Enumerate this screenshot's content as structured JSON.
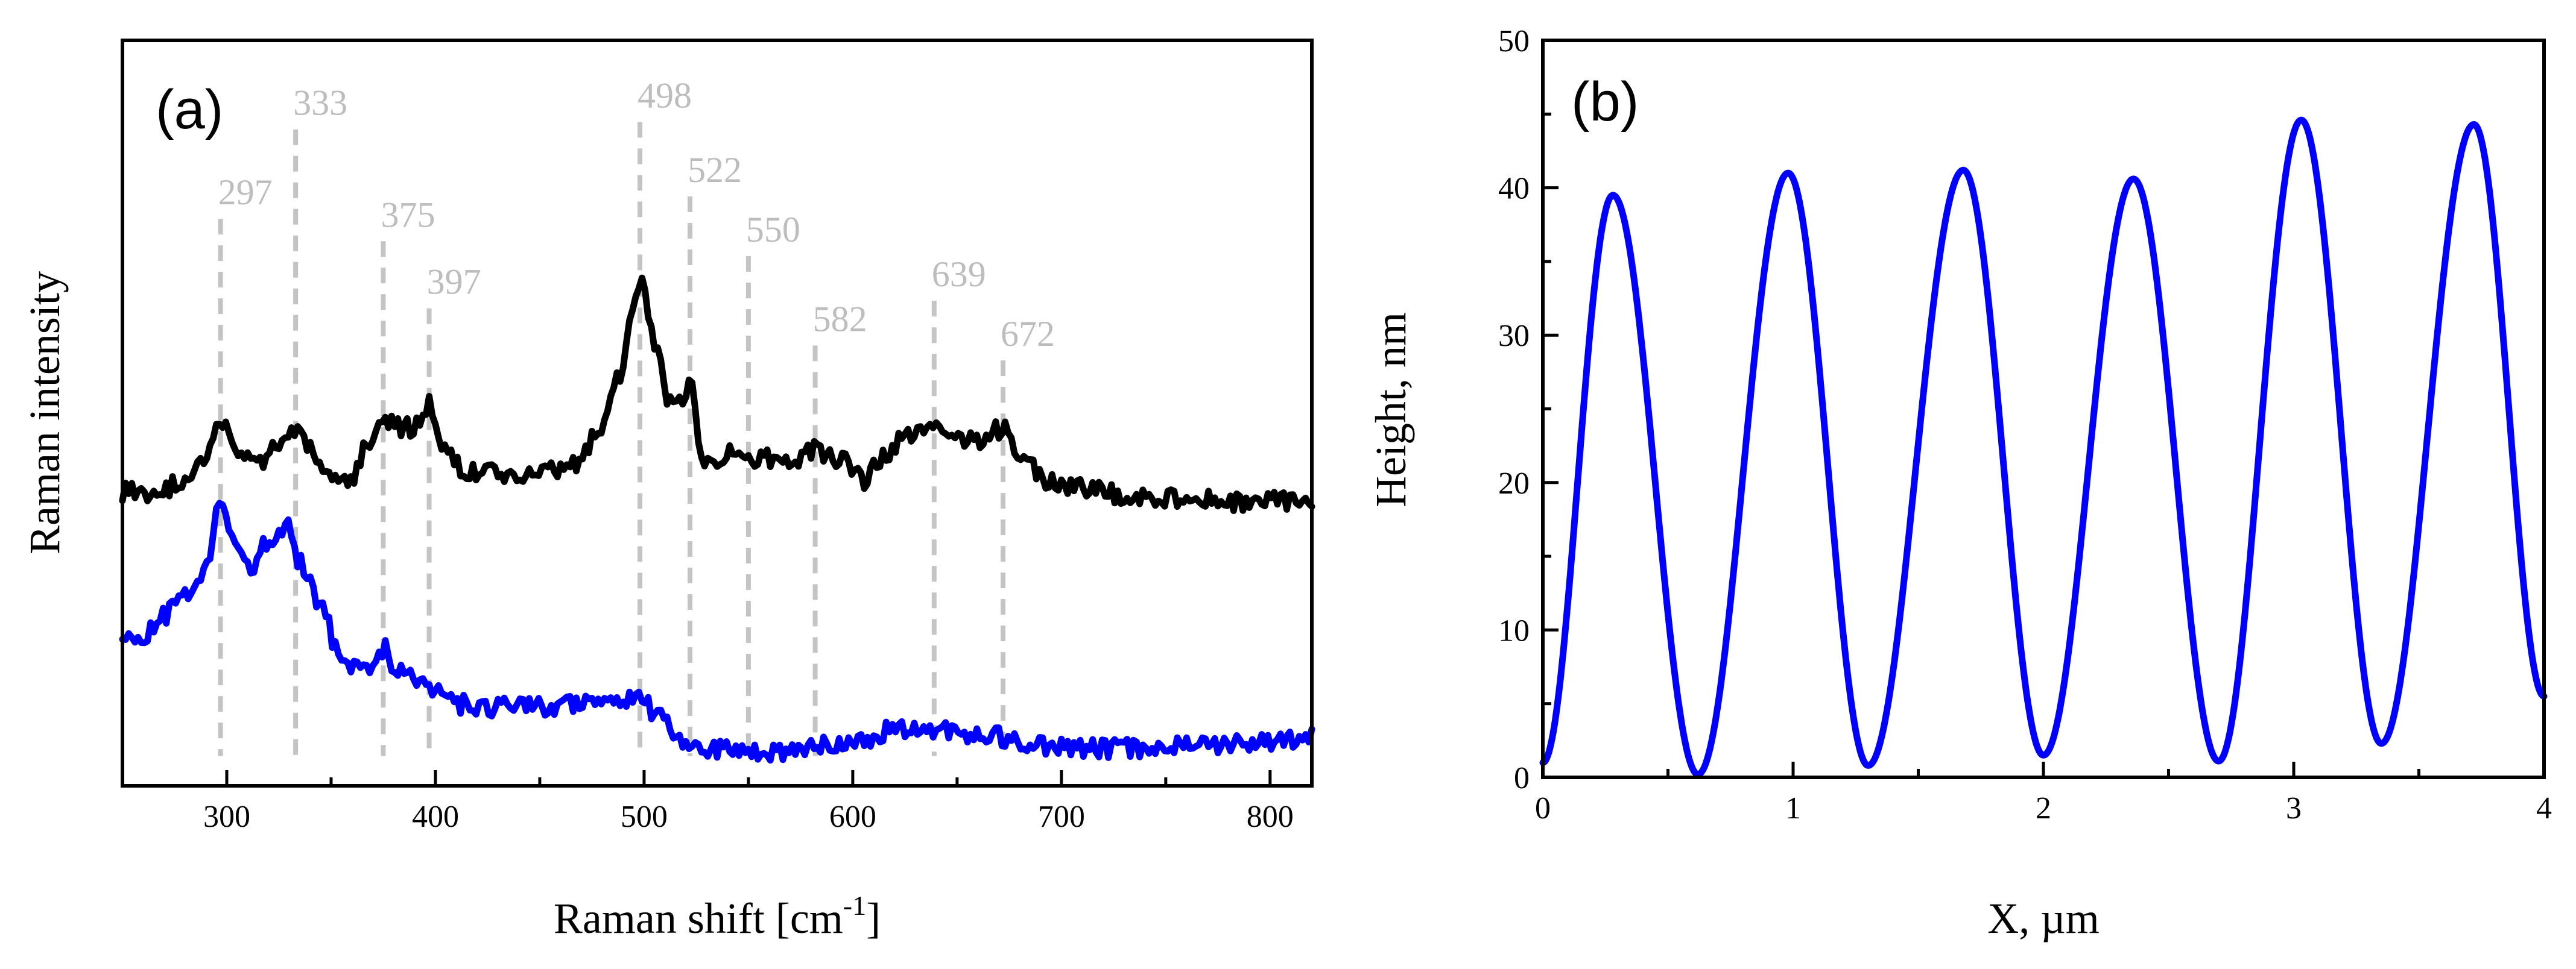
{
  "chart_data": [
    {
      "type": "line",
      "panel_label": "(a)",
      "title": "",
      "xlabel": "Raman shift [cm",
      "xlabel_superscript": "-1",
      "xlabel_suffix": "]",
      "ylabel": "Raman intensity",
      "xlim": [
        250,
        820
      ],
      "ylim": [
        0,
        100
      ],
      "y_ticks_labeled": false,
      "x_ticks": [
        300,
        400,
        500,
        600,
        700,
        800
      ],
      "x_tick_labels": [
        "300",
        "400",
        "500",
        "600",
        "700",
        "800"
      ],
      "grid": false,
      "peak_markers": [
        {
          "label": "297",
          "x": 297,
          "label_y": 78
        },
        {
          "label": "333",
          "x": 333,
          "label_y": 90
        },
        {
          "label": "375",
          "x": 375,
          "label_y": 75
        },
        {
          "label": "397",
          "x": 397,
          "label_y": 66
        },
        {
          "label": "498",
          "x": 498,
          "label_y": 91
        },
        {
          "label": "522",
          "x": 522,
          "label_y": 81
        },
        {
          "label": "550",
          "x": 550,
          "label_y": 73
        },
        {
          "label": "582",
          "x": 582,
          "label_y": 61
        },
        {
          "label": "639",
          "x": 639,
          "label_y": 67
        },
        {
          "label": "672",
          "x": 672,
          "label_y": 59
        }
      ],
      "series": [
        {
          "name": "black spectrum",
          "color": "#000000",
          "x": [
            250,
            260,
            270,
            280,
            290,
            297,
            305,
            315,
            325,
            333,
            342,
            352,
            360,
            368,
            375,
            382,
            390,
            397,
            405,
            415,
            430,
            450,
            465,
            478,
            488,
            498,
            506,
            512,
            517,
            522,
            528,
            535,
            545,
            555,
            570,
            582,
            595,
            605,
            615,
            625,
            639,
            650,
            660,
            672,
            682,
            695,
            710,
            730,
            760,
            790,
            820
          ],
          "y": [
            39.5,
            39,
            40,
            41,
            43.5,
            49,
            44.5,
            43.5,
            46,
            48,
            44.5,
            40.5,
            41.5,
            46,
            49,
            48,
            48,
            51,
            45,
            42,
            42,
            42,
            43,
            47,
            55,
            68,
            58,
            52,
            52,
            54,
            44,
            44,
            45,
            44,
            43.5,
            45,
            43.5,
            41,
            44,
            47,
            49,
            47,
            46,
            48,
            43,
            41,
            40,
            39,
            38.5,
            38,
            38.5
          ]
        },
        {
          "name": "blue spectrum",
          "color": "#0000ff",
          "x": [
            250,
            260,
            270,
            280,
            290,
            297,
            304,
            310,
            320,
            328,
            335,
            345,
            355,
            365,
            375,
            382,
            390,
            397,
            410,
            425,
            450,
            480,
            490,
            498,
            505,
            512,
            520,
            530,
            545,
            560,
            580,
            600,
            620,
            640,
            660,
            680,
            700,
            730,
            760,
            790,
            820
          ],
          "y": [
            19,
            20,
            23,
            26,
            29,
            38,
            33,
            29,
            33,
            35,
            30,
            24,
            16.5,
            15.5,
            18.5,
            15,
            14.5,
            13.5,
            11,
            10.5,
            10.5,
            11,
            11,
            12,
            10,
            8,
            5.5,
            5,
            4.5,
            4.5,
            5.5,
            6,
            7.5,
            7.5,
            7,
            6,
            5,
            5,
            5.5,
            5.8,
            6.5
          ]
        }
      ]
    },
    {
      "type": "line",
      "panel_label": "(b)",
      "title": "",
      "xlabel": "X, µm",
      "ylabel": "Height, nm",
      "xlim": [
        0,
        4
      ],
      "ylim": [
        0,
        50
      ],
      "x_ticks": [
        0,
        1,
        2,
        3,
        4
      ],
      "x_tick_labels": [
        "0",
        "1",
        "2",
        "3",
        "4"
      ],
      "y_ticks": [
        0,
        10,
        20,
        30,
        40,
        50
      ],
      "y_tick_labels": [
        "0",
        "10",
        "20",
        "30",
        "40",
        "50"
      ],
      "grid": false,
      "series": [
        {
          "name": "height profile",
          "color": "#0000ff",
          "extrema": {
            "x": [
              0.0,
              0.28,
              0.62,
              0.98,
              1.3,
              1.68,
              2.0,
              2.36,
              2.7,
              3.03,
              3.35,
              3.72,
              4.0
            ],
            "y": [
              1.0,
              39.5,
              0.2,
              41.0,
              0.8,
              41.2,
              1.5,
              40.6,
              1.1,
              44.6,
              2.3,
              44.3,
              5.5
            ]
          }
        }
      ]
    }
  ]
}
